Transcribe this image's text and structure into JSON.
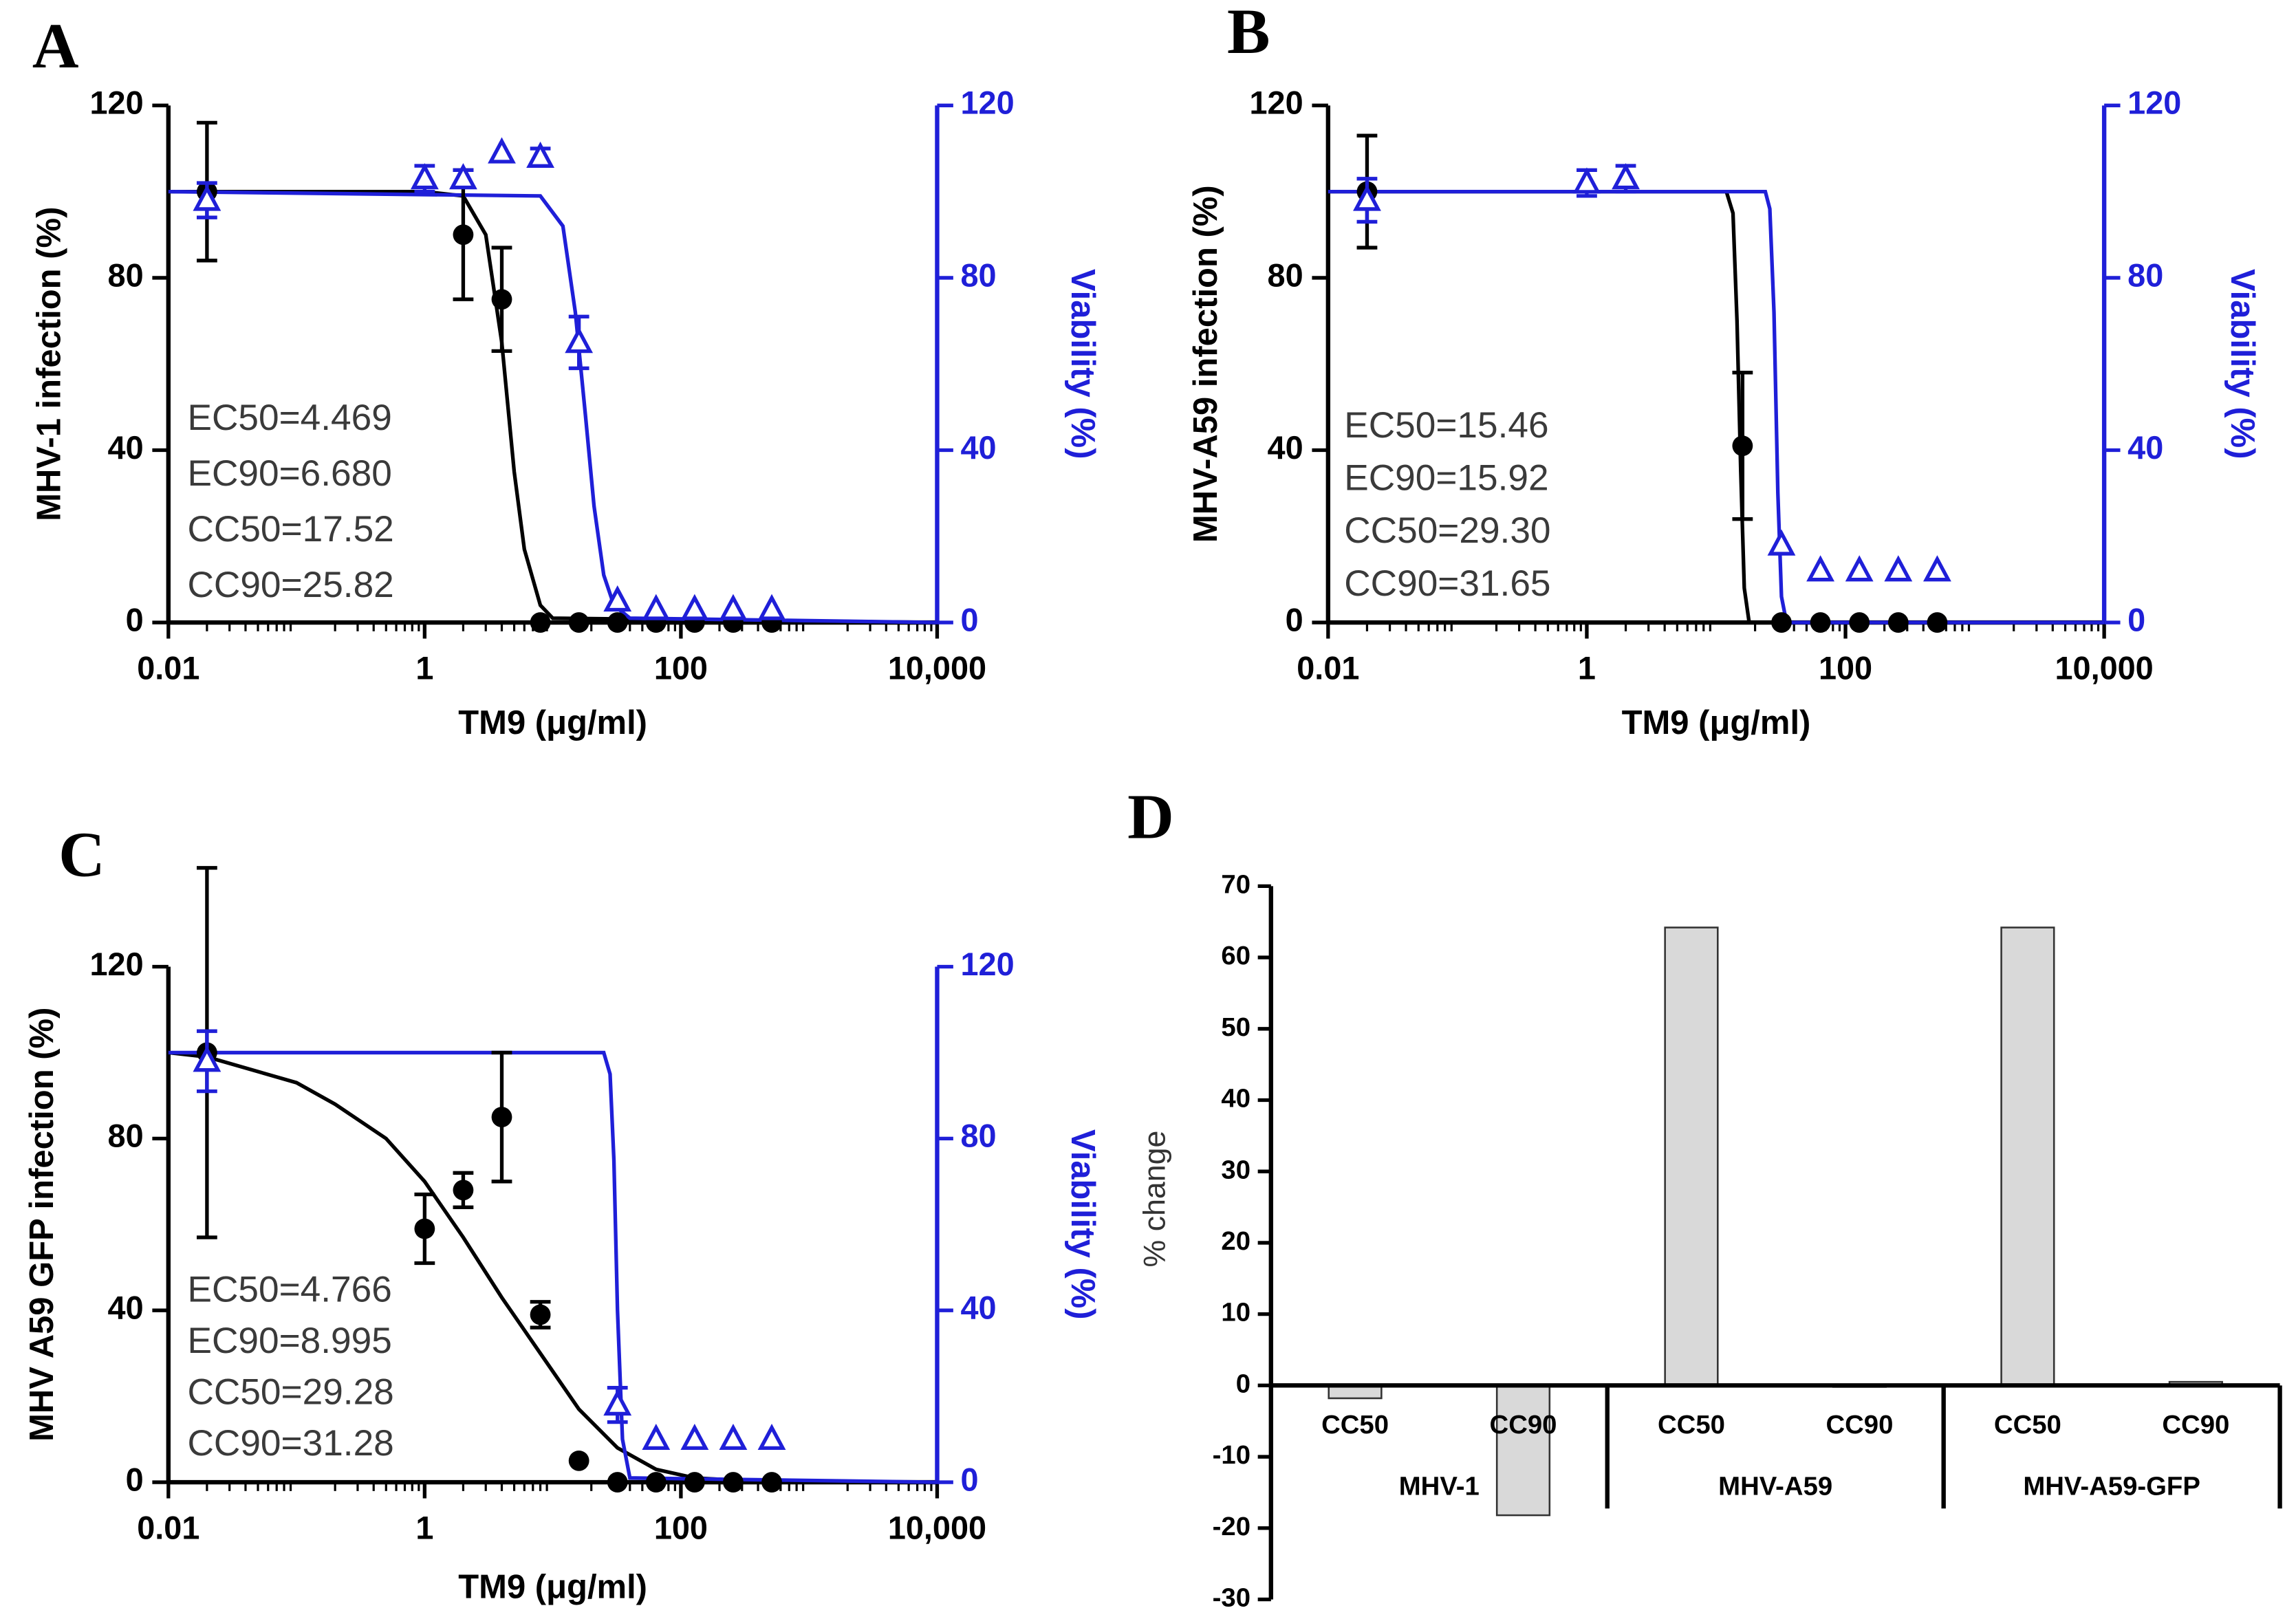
{
  "chart_data": [
    {
      "type": "scatter",
      "panel": "A",
      "y_label": "MHV-1 infection (%)",
      "y2_label": "Viability (%)",
      "x_label": "TM9 (μg/ml)",
      "log_x": true,
      "xlim": [
        0.01,
        10000
      ],
      "xticks": [
        0.01,
        1,
        100,
        {
          "value": 10000,
          "label": "10,000"
        }
      ],
      "ylim": [
        0,
        120
      ],
      "yticks": [
        0,
        40,
        80,
        120
      ],
      "y2lim": [
        0,
        120
      ],
      "y2ticks": [
        0,
        40,
        80,
        120
      ],
      "annotations": [
        "EC50=4.469",
        "EC90=6.680",
        "CC50=17.52",
        "CC90=25.82"
      ],
      "series": [
        {
          "color": "#000000",
          "marker": "circle",
          "x": [
            0.02,
            2,
            4,
            8,
            16,
            32,
            64,
            128,
            256,
            512
          ],
          "values": [
            100,
            90,
            75,
            0,
            0,
            0,
            0,
            0,
            0,
            0
          ],
          "errors": [
            16,
            15,
            12,
            0,
            0,
            0,
            0,
            0,
            0,
            0
          ]
        },
        {
          "color": "#1f1fd8",
          "marker": "triangle",
          "axis": "y2",
          "x": [
            0.02,
            1,
            2,
            4,
            8,
            16,
            32,
            64,
            128,
            256,
            512
          ],
          "values": [
            98,
            103,
            103,
            109,
            108,
            65,
            5,
            3,
            3,
            3,
            3
          ],
          "errors": [
            4,
            3,
            2,
            0,
            2,
            6,
            0,
            0,
            0,
            0,
            0
          ]
        }
      ],
      "curves": [
        {
          "color": "#000000",
          "x": [
            0.01,
            1,
            2,
            3,
            4,
            5,
            6,
            8,
            10,
            10000
          ],
          "values": [
            100,
            100,
            99,
            90,
            65,
            35,
            17,
            4,
            1,
            0
          ]
        },
        {
          "color": "#1f1fd8",
          "axis": "y2",
          "x": [
            0.01,
            8,
            12,
            15,
            18,
            21,
            25,
            30,
            40,
            10000
          ],
          "values": [
            100,
            99,
            92,
            72,
            48,
            27,
            11,
            4,
            1,
            0
          ]
        }
      ]
    },
    {
      "type": "scatter",
      "panel": "B",
      "y_label": "MHV-A59 infection (%)",
      "y2_label": "Viability (%)",
      "x_label": "TM9 (μg/ml)",
      "log_x": true,
      "xlim": [
        0.01,
        10000
      ],
      "xticks": [
        0.01,
        1,
        100,
        {
          "value": 10000,
          "label": "10,000"
        }
      ],
      "ylim": [
        0,
        120
      ],
      "yticks": [
        0,
        40,
        80,
        120
      ],
      "y2lim": [
        0,
        120
      ],
      "y2ticks": [
        0,
        40,
        80,
        120
      ],
      "annotations": [
        "EC50=15.46",
        "EC90=15.92",
        "CC50=29.30",
        "CC90=31.65"
      ],
      "series": [
        {
          "color": "#000000",
          "marker": "circle",
          "x": [
            0.02,
            16,
            32,
            64,
            128,
            256,
            512
          ],
          "values": [
            100,
            41,
            0,
            0,
            0,
            0,
            0
          ],
          "errors": [
            13,
            17,
            0,
            0,
            0,
            0,
            0
          ]
        },
        {
          "color": "#1f1fd8",
          "marker": "triangle",
          "axis": "y2",
          "x": [
            0.02,
            1,
            2,
            32,
            64,
            128,
            256,
            512
          ],
          "values": [
            98,
            102,
            103,
            18,
            12,
            12,
            12,
            12
          ],
          "errors": [
            5,
            3,
            3,
            0,
            0,
            0,
            0,
            0
          ]
        }
      ],
      "curves": [
        {
          "color": "#000000",
          "x": [
            0.01,
            12,
            13.5,
            14.5,
            15.5,
            16.5,
            18,
            10000
          ],
          "values": [
            100,
            100,
            95,
            70,
            35,
            8,
            0,
            0
          ]
        },
        {
          "color": "#1f1fd8",
          "axis": "y2",
          "x": [
            0.01,
            24,
            26,
            28,
            30,
            32,
            35,
            10000
          ],
          "values": [
            100,
            100,
            96,
            72,
            30,
            6,
            0,
            0
          ]
        }
      ]
    },
    {
      "type": "scatter",
      "panel": "C",
      "y_label": "MHV A59 GFP infection (%)",
      "y2_label": "Viability (%)",
      "x_label": "TM9 (μg/ml)",
      "log_x": true,
      "xlim": [
        0.01,
        10000
      ],
      "xticks": [
        0.01,
        1,
        100,
        {
          "value": 10000,
          "label": "10,000"
        }
      ],
      "ylim": [
        0,
        120
      ],
      "yticks": [
        0,
        40,
        80,
        120
      ],
      "y2lim": [
        0,
        120
      ],
      "y2ticks": [
        0,
        40,
        80,
        120
      ],
      "annotations": [
        "EC50=4.766",
        "EC90=8.995",
        "CC50=29.28",
        "CC90=31.28"
      ],
      "series": [
        {
          "color": "#000000",
          "marker": "circle",
          "x": [
            0.02,
            1,
            2,
            4,
            8,
            16,
            32,
            64,
            128,
            256,
            512
          ],
          "values": [
            100,
            59,
            68,
            85,
            39,
            5,
            0,
            0,
            0,
            0,
            0
          ],
          "errors": [
            43,
            8,
            4,
            15,
            3,
            0,
            0,
            0,
            0,
            0,
            0
          ]
        },
        {
          "color": "#1f1fd8",
          "marker": "triangle",
          "axis": "y2",
          "x": [
            0.02,
            32,
            64,
            128,
            256,
            512
          ],
          "values": [
            98,
            18,
            10,
            10,
            10,
            10
          ],
          "errors": [
            7,
            4,
            0,
            0,
            0,
            0
          ]
        }
      ],
      "curves": [
        {
          "color": "#000000",
          "x": [
            0.01,
            0.02,
            0.1,
            0.2,
            0.5,
            1,
            2,
            4,
            8,
            16,
            32,
            64,
            128,
            512,
            10000
          ],
          "values": [
            100,
            99,
            93,
            88,
            80,
            70,
            57,
            43,
            30,
            17,
            8,
            3,
            1,
            0,
            0
          ]
        },
        {
          "color": "#1f1fd8",
          "axis": "y2",
          "x": [
            0.01,
            25,
            28,
            30,
            32,
            35,
            40,
            10000
          ],
          "values": [
            100,
            100,
            95,
            75,
            40,
            10,
            1,
            0
          ]
        }
      ]
    },
    {
      "type": "bar",
      "panel": "D",
      "y_label": "% change",
      "groups": [
        "MHV-1",
        "MHV-A59",
        "MHV-A59-GFP"
      ],
      "categories": [
        "CC50",
        "CC90",
        "CC50",
        "CC90",
        "CC50",
        "CC90"
      ],
      "values": [
        -1.8,
        -18.2,
        64.2,
        0,
        64.2,
        0.5
      ],
      "color": "#d9d9d9",
      "ylim": [
        -30,
        70
      ],
      "yticks": [
        -30,
        -20,
        -10,
        0,
        10,
        20,
        30,
        40,
        50,
        60,
        70
      ]
    }
  ]
}
